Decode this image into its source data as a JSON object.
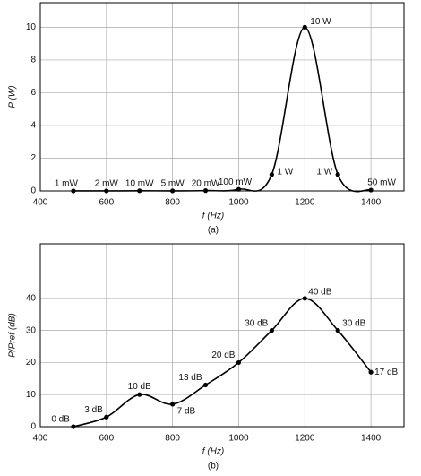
{
  "chart_data": [
    {
      "type": "line",
      "caption": "(a)",
      "x_label": "f (Hz)",
      "y_label": "P (W)",
      "x": [
        500,
        600,
        700,
        800,
        900,
        1000,
        1100,
        1200,
        1300,
        1400
      ],
      "series": [
        {
          "color": "#000000",
          "values": [
            0.001,
            0.002,
            0.01,
            0.005,
            0.02,
            0.1,
            1,
            10,
            1,
            0.05
          ],
          "value_labels": [
            "1 mW",
            "2 mW",
            "10 mW",
            "5 mW",
            "20 mW",
            "100 mW",
            "1 W",
            "10 W",
            "1 W",
            "50 mW"
          ]
        }
      ],
      "xlim": [
        400,
        1500
      ],
      "xticks": [
        400,
        600,
        800,
        1000,
        1200,
        1400
      ],
      "ylim": [
        0,
        11.5
      ],
      "yticks": [
        0,
        2,
        4,
        6,
        8,
        10
      ],
      "grid": true
    },
    {
      "type": "line",
      "caption": "(b)",
      "x_label": "f (Hz)",
      "y_label": "P/Pref (dB)",
      "x": [
        500,
        600,
        700,
        800,
        900,
        1000,
        1100,
        1200,
        1300,
        1400
      ],
      "series": [
        {
          "color": "#000000",
          "values": [
            0,
            3,
            10,
            7,
            13,
            20,
            30,
            40,
            30,
            17
          ],
          "value_labels": [
            "0 dB",
            "3 dB",
            "10 dB",
            "7 dB",
            "13 dB",
            "20 dB",
            "30 dB",
            "40 dB",
            "30 dB",
            "17 dB"
          ]
        }
      ],
      "xlim": [
        400,
        1500
      ],
      "xticks": [
        400,
        600,
        800,
        1000,
        1200,
        1400
      ],
      "ylim": [
        0,
        57
      ],
      "yticks": [
        0,
        10,
        20,
        30,
        40
      ],
      "grid": true
    }
  ]
}
